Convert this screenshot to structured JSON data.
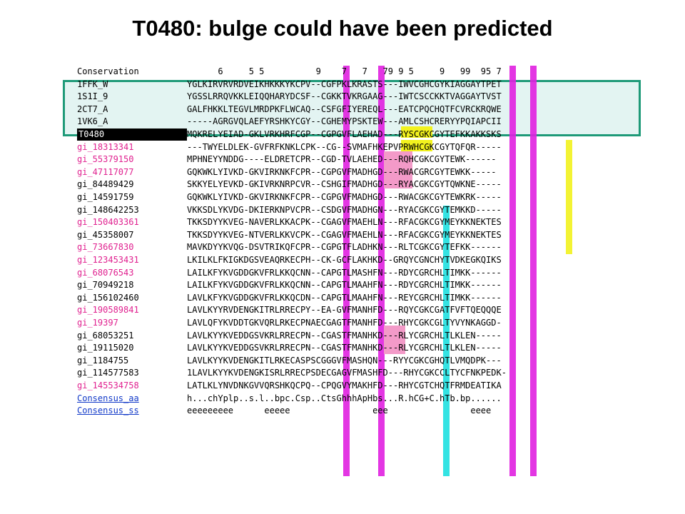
{
  "title": "T0480: bulge could have been predicted",
  "colors": {
    "magenta": "#e020e0",
    "cyan": "#1ee0e0",
    "yellow": "#f2f21e",
    "pink": "#f39ac8",
    "box": "#1e9a78",
    "box_fill": "#e3f4f2"
  },
  "rows": [
    {
      "name": "Conservation",
      "seq": "      6     5 5          9    7   7   79 9 5     9   99  95 7",
      "style": "n-black"
    },
    {
      "name": "1FFK_W",
      "seq": "YGLKIRVRVRDVEIKHKKKYKCPV--CGFPKLKRASTS---IWVCGHCGYKIAGGAYTPET",
      "style": "n-black"
    },
    {
      "name": "1S1I_9",
      "seq": "YGSSLRRQVKKLEIQQHARYDCSF--CGKKTVKRGAAG---IWTCSCCKKTVAGGAYTVST",
      "style": "n-black"
    },
    {
      "name": "2CT7_A",
      "seq": "GALFHKKLTEGVLMRDPKFLWCAQ--CSFGFIYEREQL---EATCPQCHQTFCVRCKRQWE",
      "style": "n-black"
    },
    {
      "name": "1VK6_A",
      "seq": "-----AGRGVQLAEFYRSHKYCGY--CGHEMYPSKTEW---AMLCSHCRERYYPQIAPCII",
      "style": "n-black"
    },
    {
      "name": "T0480",
      "seq": "MQKRELYEIAD-GKLVRKHRFCGP--CGPGVFLAEHAD---RYSCGKCGYTEFKKAKKSKS",
      "style": "n-t0480"
    },
    {
      "name": "gi_18313341",
      "seq": "---TWYELDLEK-GVFRFKNKLCPK--CG--SVMAFHKEPVPRWHCGKCGYTQFQR-----",
      "style": "n-mag"
    },
    {
      "name": "gi_55379150",
      "seq": "MPHNEYYNDDG----ELDRETCPR--CGD-TVLAEHED---RQHCGKCGYTEWK------",
      "style": "n-mag"
    },
    {
      "name": "gi_47117077",
      "seq": "GQKWKLYIVKD-GKVIRKNKFCPR--CGPGVFMADHGD---RWACGRCGYTEWKK-----",
      "style": "n-mag"
    },
    {
      "name": "gi_84489429",
      "seq": "SKKYELYEVKD-GKIVRKNRPCVR--CSHGIFMADHGD---RYACGKCGYTQWKNE-----",
      "style": "n-black"
    },
    {
      "name": "gi_14591759",
      "seq": "GQKWKLYIVKD-GKVIRKNKFCPR--CGPGVFMADHGD---RWACGKCGYTEWKRK-----",
      "style": "n-black"
    },
    {
      "name": "gi_148642253",
      "seq": "VKKSDLYKVDG-DKIERKNPVCPR--CSDGVFMADHGN---RYACGKCGYTEMKKD-----",
      "style": "n-black"
    },
    {
      "name": "gi_150403361",
      "seq": "TKKSDYYKVEG-NAVERLKKACPK--CGAGVFMAEHLN---RFACGKCGYMEYKKNEKTES",
      "style": "n-mag"
    },
    {
      "name": "gi_45358007",
      "seq": "TKKSDYYKVEG-NTVERLKKVCPK--CGAGVFMAEHLN---RFACGKCGYMEYKKNEKTES",
      "style": "n-black"
    },
    {
      "name": "gi_73667830",
      "seq": "MAVKDYYKVQG-DSVTRIKQFCPR--CGPGTFLADHKN---RLTCGKCGYTEFKK------",
      "style": "n-mag"
    },
    {
      "name": "gi_123453431",
      "seq": "LKILKLFKIGKDGSVEAQRKECPH--CK-GCFLAKHKD--GRQYCGNCHYTVDKEGKQIKS",
      "style": "n-mag"
    },
    {
      "name": "gi_68076543",
      "seq": "LAILKFYKVGDDGKVFRLKKQCNN--CAPGTLMASHFN---RDYCGRCHLTIMKK------",
      "style": "n-mag"
    },
    {
      "name": "gi_70949218",
      "seq": "LAILKFYKVGDDGKVFRLKKQCNN--CAPGTLMAAHFN---RDYCGRCHLTIMKK------",
      "style": "n-black"
    },
    {
      "name": "gi_156102460",
      "seq": "LAVLKFYKVGDDGKVFRLKKQCDN--CAPGTLMAAHFN---REYCGRCHLTIMKK------",
      "style": "n-black"
    },
    {
      "name": "gi_190589841",
      "seq": "LAVLKYYRVDENGKITRLRRECPY--EA-GVFMANHFD---RQYCGKCGATFVFTQEQQQE",
      "style": "n-mag"
    },
    {
      "name": "gi_19397",
      "seq": "LAVLQFYKVDDTGKVQRLRKECPNAECGAGTFMANHFD---RHYCGKCGLTYVYNKAGGD-",
      "style": "n-mag"
    },
    {
      "name": "gi_68053251",
      "seq": "LAVLKYYKVEDDGSVKRLRRECPN--CGASTFMANHKD---RLYCGRCHLTLKLEN-----",
      "style": "n-black"
    },
    {
      "name": "gi_19115020",
      "seq": "LAVLKYYKVEDDGSVKRLRRECPN--CGASTFMANHKD---RLYCGRCHLTLKLEN-----",
      "style": "n-black"
    },
    {
      "name": "gi_1184755",
      "seq": "LAVLKYYKVDENGKITLRKECASPSCGGGVFMASHQN---RYYCGKCGHQTLVMQDPK---",
      "style": "n-black"
    },
    {
      "name": "gi_114577583",
      "seq": "1LAVLKYYKVDENGKISRLRRECPSDECGAGVFMASHFD---RHYCGKCCLTYCFNKPEDK-",
      "style": "n-black"
    },
    {
      "name": "gi_145534758",
      "seq": "LATLKLYNVDNKGVVQRSHKQCPQ--CPQGVYMAKHFD---RHYCGTCHQTFRMDEATIKA",
      "style": "n-mag"
    },
    {
      "name": "Consensus_aa",
      "seq": "h...chYplp..s.l..bpc.Csp..CtsGhhhApHbs...R.hCG+C.hTb.bp......",
      "style": "n-blue"
    },
    {
      "name": "Consensus_ss",
      "seq": "eeeeeeeee      eeeee                eee                eeee",
      "style": "n-blue"
    }
  ]
}
